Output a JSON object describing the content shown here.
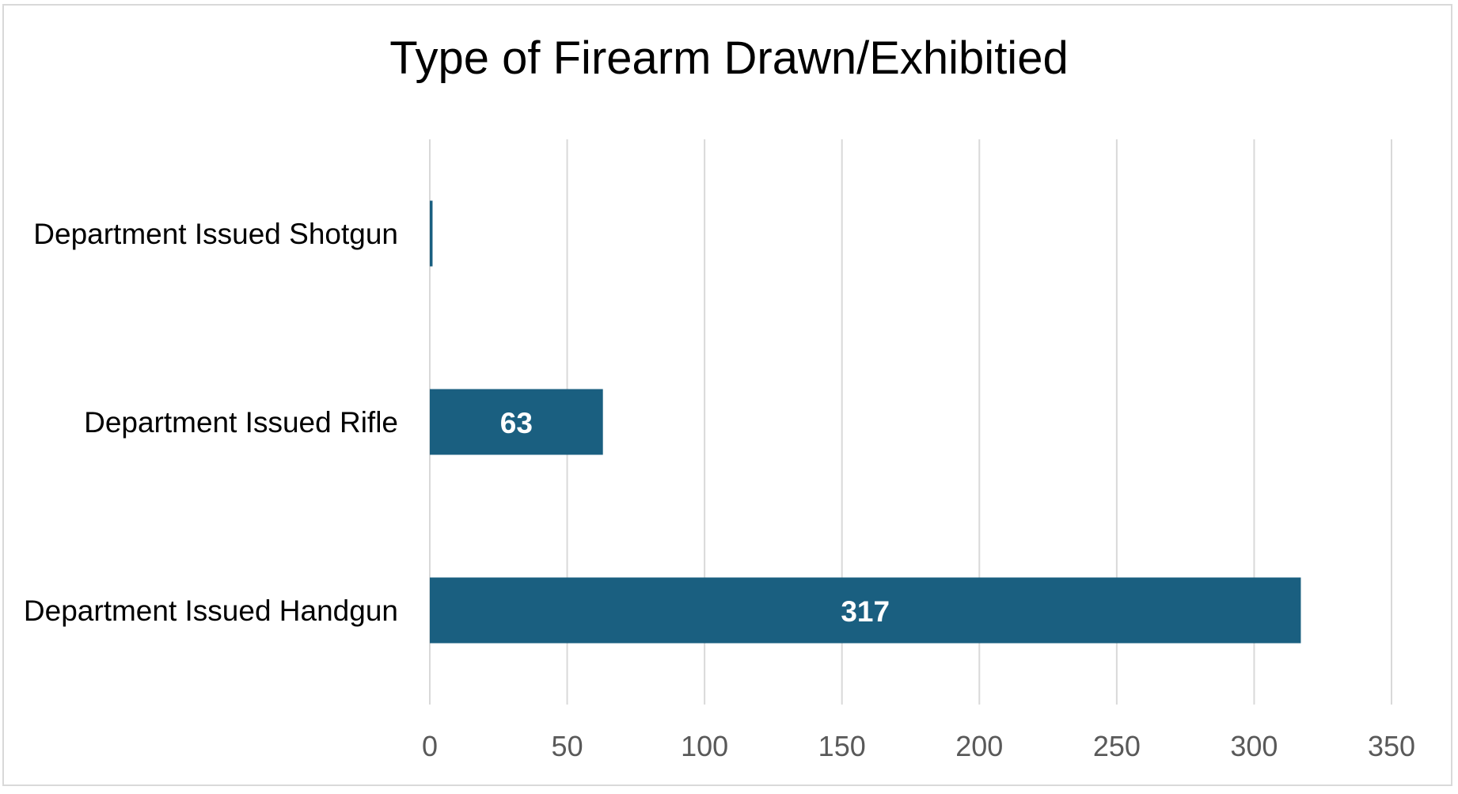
{
  "chart_data": {
    "type": "bar",
    "orientation": "horizontal",
    "title": "Type of Firearm Drawn/Exhibitied",
    "categories": [
      "Department Issued Shotgun",
      "Department Issued Rifle",
      "Department Issued Handgun"
    ],
    "values": [
      1,
      63,
      317
    ],
    "data_labels": [
      "",
      "63",
      "317"
    ],
    "xlim": [
      0,
      350
    ],
    "x_ticks": [
      "0",
      "50",
      "100",
      "150",
      "200",
      "250",
      "300",
      "350"
    ],
    "grid": "vertical",
    "legend": "none",
    "bar_color": "#1a5f80",
    "gridline_color": "#d9d9d9",
    "tick_color": "#595959"
  }
}
